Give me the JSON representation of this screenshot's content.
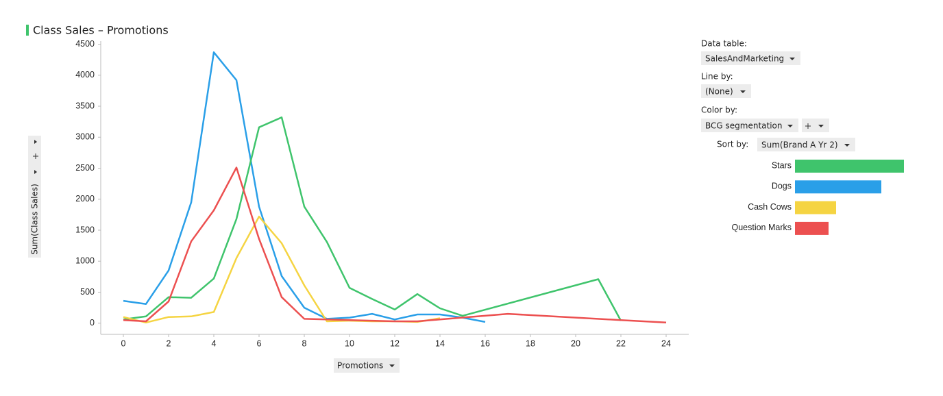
{
  "chart_data": [
    {
      "type": "line",
      "title": "Class Sales – Promotions",
      "y_label": "Sum(Class Sales)",
      "x_label": "Promotions",
      "xlim": [
        -1,
        25
      ],
      "xticks": [
        0,
        2,
        4,
        6,
        8,
        10,
        12,
        14,
        16,
        18,
        20,
        22,
        24
      ],
      "ylim": [
        -180,
        4550
      ],
      "yticks": [
        0,
        500,
        1000,
        1500,
        2000,
        2500,
        3000,
        3500,
        4000,
        4500
      ],
      "grid": false,
      "series": [
        {
          "name": "Dogs",
          "color": "#2a9fe8",
          "x": [
            0,
            1,
            2,
            3,
            4,
            5,
            6,
            7,
            8,
            9,
            10,
            11,
            12,
            13,
            14,
            15,
            16
          ],
          "values": [
            360,
            310,
            850,
            1950,
            4370,
            3920,
            1880,
            760,
            250,
            70,
            90,
            150,
            60,
            140,
            140,
            90,
            20
          ]
        },
        {
          "name": "Stars",
          "color": "#3fc46c",
          "x": [
            0,
            1,
            2,
            3,
            4,
            5,
            6,
            7,
            8,
            9,
            10,
            11,
            12,
            13,
            14,
            15,
            21,
            22
          ],
          "values": [
            60,
            110,
            420,
            410,
            720,
            1680,
            3160,
            3320,
            1880,
            1310,
            570,
            390,
            220,
            470,
            240,
            120,
            710,
            40
          ]
        },
        {
          "name": "Cash Cows",
          "color": "#f5d442",
          "x": [
            0,
            1,
            2,
            3,
            4,
            5,
            6,
            7,
            8,
            9,
            10,
            11,
            12,
            13,
            14
          ],
          "values": [
            100,
            10,
            100,
            110,
            180,
            1050,
            1720,
            1290,
            610,
            30,
            40,
            30,
            30,
            20,
            80
          ]
        },
        {
          "name": "Question Marks",
          "color": "#ec5050",
          "x": [
            0,
            1,
            2,
            3,
            4,
            5,
            6,
            7,
            8,
            9,
            10,
            12,
            13,
            14,
            17,
            22,
            24
          ],
          "values": [
            50,
            30,
            350,
            1320,
            1820,
            2510,
            1360,
            420,
            70,
            60,
            50,
            30,
            30,
            60,
            150,
            50,
            10
          ]
        }
      ]
    },
    {
      "type": "hbar",
      "sort_label": "Sort by:",
      "sort_value": "Sum(Brand A Yr 2)",
      "categories": [
        "Stars",
        "Dogs",
        "Cash Cows",
        "Question Marks"
      ],
      "colors": [
        "#3fc46c",
        "#2a9fe8",
        "#f5d442",
        "#ec5050"
      ],
      "values": [
        159,
        126,
        60,
        49
      ],
      "xlim": [
        0,
        159
      ]
    }
  ],
  "controls": {
    "data_table_label": "Data table:",
    "data_table": "SalesAndMarketing",
    "line_by_label": "Line by:",
    "line_by": "(None)",
    "color_by_label": "Color by:",
    "color_by": "BCG segmentation"
  }
}
